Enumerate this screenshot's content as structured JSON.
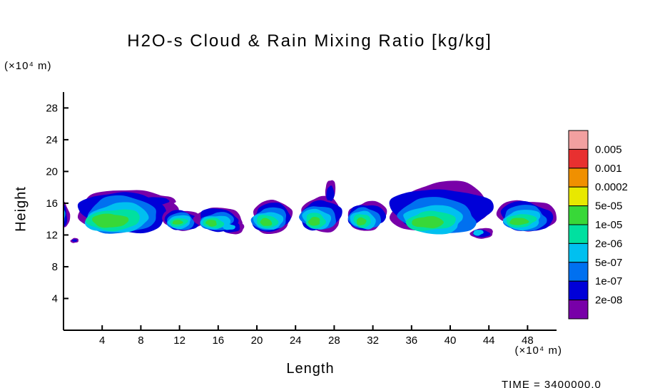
{
  "chart_data": {
    "type": "contour",
    "title": "H2O-s Cloud & Rain Mixing Ratio [kg/kg]",
    "xlabel": "Length",
    "ylabel": "Height",
    "x_unit": "(×10⁴ m)",
    "y_unit": "(×10⁴ m)",
    "time_label": "TIME = 3400000.0",
    "x_range": [
      0,
      51
    ],
    "y_range": [
      0,
      30
    ],
    "x_ticks": [
      4,
      8,
      12,
      16,
      20,
      24,
      28,
      32,
      36,
      40,
      44,
      48
    ],
    "y_ticks": [
      4,
      8,
      12,
      16,
      20,
      24,
      28
    ],
    "levels": [
      "2e-08",
      "1e-07",
      "5e-07",
      "2e-06",
      "1e-05",
      "5e-05",
      "0.0002",
      "0.001",
      "0.005"
    ],
    "band_colors_low_to_high": [
      "#7800a8",
      "#0000d8",
      "#0070f0",
      "#00c0f0",
      "#00e0a0",
      "#38d838",
      "#e8e800",
      "#f09000",
      "#e83030",
      "#f2a0a0"
    ],
    "colorbar_labels_top_to_bottom": [
      "0.005",
      "0.001",
      "0.0002",
      "5e-05",
      "1e-05",
      "2e-06",
      "5e-07",
      "1e-07",
      "2e-08"
    ],
    "legend_position": "right",
    "grid": false,
    "clouds": [
      {
        "name": "left-edge-sliver",
        "blobs": [
          [
            0,
            -0.1,
            14.6,
            0.7,
            1.7,
            9
          ],
          [
            1,
            -0.15,
            14.5,
            0.55,
            1.4,
            10
          ],
          [
            3,
            -0.2,
            14.4,
            0.4,
            1.0,
            11
          ],
          [
            4,
            -0.25,
            14.3,
            0.3,
            0.7,
            12
          ]
        ]
      },
      {
        "name": "speck",
        "blobs": [
          [
            0,
            1.15,
            11.3,
            0.4,
            0.32,
            13
          ],
          [
            1,
            1.15,
            11.3,
            0.24,
            0.18,
            14
          ]
        ]
      },
      {
        "name": "cloud-1",
        "blobs": [
          [
            0,
            6.4,
            15.2,
            4.7,
            2.7,
            1
          ],
          [
            0,
            9.9,
            16.4,
            1.6,
            0.6,
            2
          ],
          [
            1,
            6.3,
            14.9,
            4.4,
            2.5,
            3
          ],
          [
            1,
            9.7,
            16.3,
            1.3,
            0.45,
            4
          ],
          [
            2,
            6.0,
            14.5,
            3.9,
            2.15,
            5
          ],
          [
            3,
            5.6,
            14.1,
            3.3,
            1.8,
            6
          ],
          [
            4,
            5.2,
            13.9,
            2.6,
            1.4,
            7
          ],
          [
            5,
            4.8,
            13.8,
            1.7,
            0.95,
            8
          ]
        ]
      },
      {
        "name": "cloud-2",
        "blobs": [
          [
            0,
            12.3,
            13.9,
            2.0,
            1.35,
            15
          ],
          [
            1,
            12.2,
            13.8,
            1.8,
            1.2,
            16
          ],
          [
            2,
            12.1,
            13.7,
            1.55,
            1.0,
            17
          ],
          [
            3,
            12.0,
            13.65,
            1.25,
            0.8,
            18
          ],
          [
            4,
            11.9,
            13.6,
            0.9,
            0.55,
            19
          ],
          [
            5,
            11.8,
            13.6,
            0.5,
            0.32,
            20
          ]
        ]
      },
      {
        "name": "cloud-3",
        "blobs": [
          [
            0,
            16.1,
            14.0,
            2.3,
            1.55,
            21
          ],
          [
            0,
            17.4,
            13.0,
            1.3,
            0.85,
            22
          ],
          [
            1,
            16.0,
            13.9,
            2.1,
            1.35,
            23
          ],
          [
            1,
            17.3,
            13.0,
            1.05,
            0.65,
            24
          ],
          [
            2,
            15.9,
            13.7,
            1.75,
            1.1,
            25
          ],
          [
            3,
            15.7,
            13.6,
            1.45,
            0.9,
            26
          ],
          [
            3,
            17.1,
            13.0,
            0.6,
            0.4,
            27
          ],
          [
            4,
            15.5,
            13.5,
            1.05,
            0.65,
            28
          ],
          [
            5,
            15.3,
            13.5,
            0.6,
            0.4,
            29
          ]
        ]
      },
      {
        "name": "cloud-4",
        "blobs": [
          [
            0,
            21.6,
            14.3,
            2.15,
            1.95,
            30
          ],
          [
            1,
            21.5,
            14.2,
            1.95,
            1.75,
            31
          ],
          [
            2,
            21.35,
            14.0,
            1.7,
            1.5,
            32
          ],
          [
            3,
            21.2,
            13.8,
            1.4,
            1.2,
            33
          ],
          [
            4,
            21.05,
            13.7,
            1.05,
            0.85,
            34
          ],
          [
            5,
            20.95,
            13.6,
            0.62,
            0.48,
            35
          ]
        ]
      },
      {
        "name": "cloud-5",
        "blobs": [
          [
            0,
            26.7,
            14.6,
            2.25,
            2.05,
            36
          ],
          [
            0,
            27.6,
            17.5,
            0.55,
            1.4,
            37
          ],
          [
            1,
            26.6,
            14.5,
            2.05,
            1.85,
            38
          ],
          [
            1,
            27.6,
            17.2,
            0.38,
            1.05,
            39
          ],
          [
            2,
            26.4,
            14.2,
            1.75,
            1.55,
            40
          ],
          [
            3,
            26.2,
            14.0,
            1.45,
            1.25,
            41
          ],
          [
            4,
            26.05,
            13.8,
            1.1,
            0.9,
            42
          ],
          [
            5,
            25.95,
            13.7,
            0.65,
            0.52,
            43
          ]
        ]
      },
      {
        "name": "cloud-6",
        "blobs": [
          [
            0,
            31.4,
            14.4,
            1.95,
            1.85,
            44
          ],
          [
            1,
            31.3,
            14.3,
            1.8,
            1.65,
            45
          ],
          [
            2,
            31.15,
            14.1,
            1.55,
            1.4,
            46
          ],
          [
            3,
            31.0,
            13.9,
            1.3,
            1.12,
            47
          ],
          [
            4,
            30.9,
            13.8,
            0.95,
            0.8,
            48
          ],
          [
            5,
            30.8,
            13.7,
            0.55,
            0.45,
            49
          ]
        ]
      },
      {
        "name": "cloud-7",
        "blobs": [
          [
            0,
            39.1,
            15.4,
            5.1,
            3.1,
            50
          ],
          [
            0,
            43.3,
            12.2,
            1.1,
            0.7,
            51
          ],
          [
            1,
            39.0,
            15.2,
            4.8,
            2.85,
            52
          ],
          [
            1,
            43.2,
            12.2,
            0.85,
            0.5,
            53
          ],
          [
            2,
            38.7,
            14.4,
            4.1,
            2.15,
            54
          ],
          [
            3,
            38.3,
            13.95,
            3.3,
            1.65,
            55
          ],
          [
            3,
            42.9,
            12.3,
            0.55,
            0.35,
            56
          ],
          [
            4,
            38.0,
            13.75,
            2.45,
            1.25,
            57
          ],
          [
            5,
            37.7,
            13.6,
            1.5,
            0.8,
            58
          ]
        ]
      },
      {
        "name": "cloud-8",
        "blobs": [
          [
            0,
            48.0,
            14.5,
            2.9,
            2.0,
            59
          ],
          [
            1,
            47.9,
            14.3,
            2.7,
            1.8,
            60
          ],
          [
            2,
            47.7,
            14.1,
            2.4,
            1.5,
            61
          ],
          [
            3,
            47.5,
            13.9,
            2.0,
            1.2,
            62
          ],
          [
            4,
            47.3,
            13.8,
            1.5,
            0.85,
            63
          ],
          [
            5,
            47.1,
            13.7,
            0.9,
            0.5,
            64
          ]
        ]
      }
    ]
  }
}
